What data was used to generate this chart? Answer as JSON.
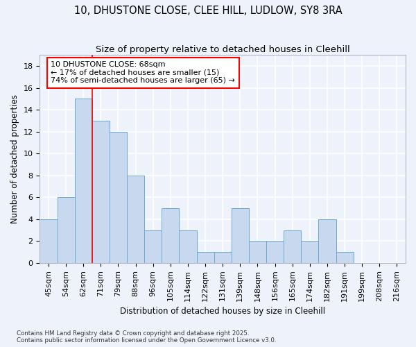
{
  "title1": "10, DHUSTONE CLOSE, CLEE HILL, LUDLOW, SY8 3RA",
  "title2": "Size of property relative to detached houses in Cleehill",
  "xlabel": "Distribution of detached houses by size in Cleehill",
  "ylabel": "Number of detached properties",
  "bin_labels": [
    "45sqm",
    "54sqm",
    "62sqm",
    "71sqm",
    "79sqm",
    "88sqm",
    "96sqm",
    "105sqm",
    "114sqm",
    "122sqm",
    "131sqm",
    "139sqm",
    "148sqm",
    "156sqm",
    "165sqm",
    "174sqm",
    "182sqm",
    "191sqm",
    "199sqm",
    "208sqm",
    "216sqm"
  ],
  "bar_heights": [
    4,
    6,
    15,
    13,
    12,
    8,
    3,
    5,
    3,
    1,
    1,
    5,
    2,
    2,
    3,
    2,
    4,
    1,
    0,
    0,
    0
  ],
  "bar_color": "#c8d8ee",
  "bar_edge_color": "#6aaad4",
  "red_line_index": 2,
  "annotation_text": "10 DHUSTONE CLOSE: 68sqm\n← 17% of detached houses are smaller (15)\n74% of semi-detached houses are larger (65) →",
  "annotation_box_color": "white",
  "annotation_box_edge_color": "red",
  "ylim": [
    0,
    19
  ],
  "yticks": [
    0,
    2,
    4,
    6,
    8,
    10,
    12,
    14,
    16,
    18
  ],
  "footer_text": "Contains HM Land Registry data © Crown copyright and database right 2025.\nContains public sector information licensed under the Open Government Licence v3.0.",
  "bg_color": "#eef3fb",
  "grid_color": "white",
  "title_fontsize": 10.5,
  "subtitle_fontsize": 9.5,
  "axis_fontsize": 8.5,
  "tick_fontsize": 8.0
}
